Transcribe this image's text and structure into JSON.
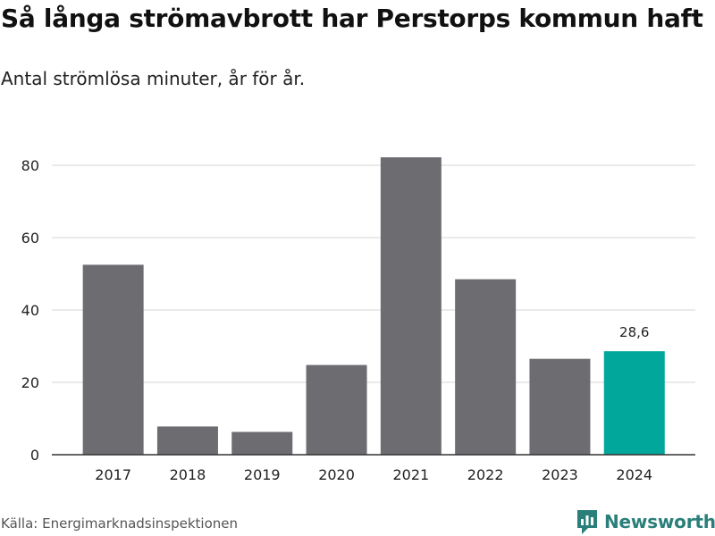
{
  "title": "Så långa strömavbrott har Perstorps kommun haft",
  "subtitle": "Antal strömlösa minuter, år för år.",
  "source": "Källa: Energimarknadsinspektionen",
  "brand": {
    "name": "Newsworthy",
    "icon": "newsworthy-logo-icon"
  },
  "colors": {
    "bar": "#6d6c71",
    "highlight": "#00a79a",
    "grid": "#d6d6d6",
    "axis": "#333333",
    "text": "#222222",
    "brand": "#2a7f7a"
  },
  "chart_data": {
    "type": "bar",
    "title": "Så långa strömavbrott har Perstorps kommun haft",
    "subtitle": "Antal strömlösa minuter, år för år.",
    "categories": [
      "2017",
      "2018",
      "2019",
      "2020",
      "2021",
      "2022",
      "2023",
      "2024"
    ],
    "values": [
      52.5,
      7.8,
      6.3,
      24.8,
      82.2,
      48.5,
      26.5,
      28.6
    ],
    "highlight_index": 7,
    "data_labels": [
      {
        "index": 7,
        "text": "28,6"
      }
    ],
    "xlabel": "",
    "ylabel": "",
    "ylim": [
      0,
      90
    ],
    "yticks": [
      0,
      20,
      40,
      60,
      80
    ],
    "grid": true,
    "legend": "none"
  }
}
